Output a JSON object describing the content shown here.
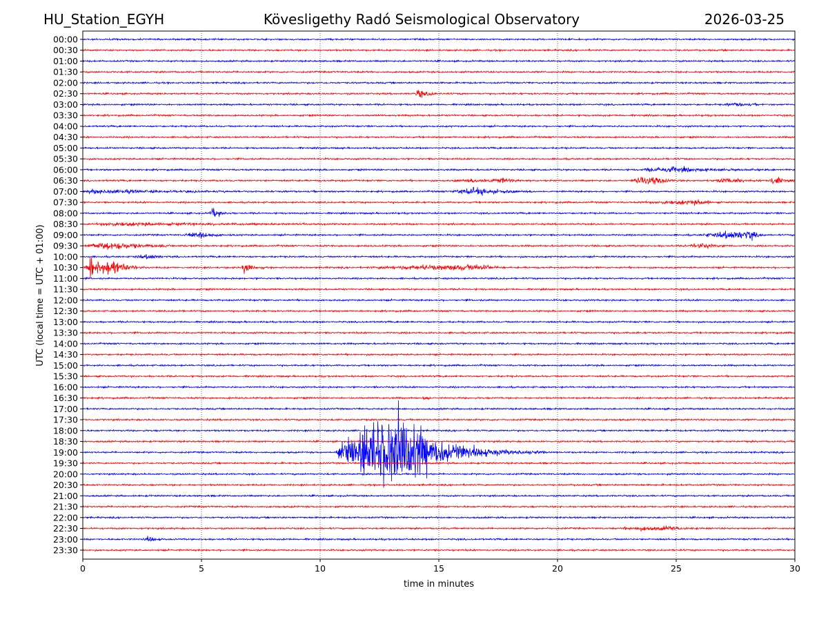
{
  "chart_data": {
    "type": "line",
    "subtype": "helicorder",
    "title_left": "HU_Station_EGYH",
    "title_center": "Kövesligethy Radó Seismological Observatory",
    "title_right": "2026-03-25",
    "xlabel": "time in minutes",
    "ylabel": "UTC (local time = UTC + 01:00)",
    "xlim": [
      0,
      30
    ],
    "xticks": [
      "0",
      "5",
      "10",
      "15",
      "20",
      "25",
      "30"
    ],
    "grid": "vertical dotted at x ticks",
    "colors": [
      "#0000ff",
      "#ff0000"
    ],
    "rows": [
      "00:00",
      "00:30",
      "01:00",
      "01:30",
      "02:00",
      "02:30",
      "03:00",
      "03:30",
      "04:00",
      "04:30",
      "05:00",
      "05:30",
      "06:00",
      "06:30",
      "07:00",
      "07:30",
      "08:00",
      "08:30",
      "09:00",
      "09:30",
      "10:00",
      "10:30",
      "11:00",
      "11:30",
      "12:00",
      "12:30",
      "13:00",
      "13:30",
      "14:00",
      "14:30",
      "15:00",
      "15:30",
      "16:00",
      "16:30",
      "17:00",
      "17:30",
      "18:00",
      "18:30",
      "19:00",
      "19:30",
      "20:00",
      "20:30",
      "21:00",
      "21:30",
      "22:00",
      "22:30",
      "23:00",
      "23:30"
    ],
    "events": [
      {
        "row": "02:30",
        "start": 14.0,
        "peak": 14.1,
        "end": 15.3,
        "amplitude": 8
      },
      {
        "row": "03:00",
        "start": 27.0,
        "peak": 27.8,
        "end": 29.0,
        "amplitude": 2
      },
      {
        "row": "06:00",
        "start": 23.5,
        "peak": 24.8,
        "end": 30.0,
        "amplitude": 4
      },
      {
        "row": "06:30",
        "start": 15.5,
        "peak": 17.8,
        "end": 19.5,
        "amplitude": 3
      },
      {
        "row": "06:30",
        "start": 23.0,
        "peak": 24.2,
        "end": 25.5,
        "amplitude": 6
      },
      {
        "row": "06:30",
        "start": 26.5,
        "peak": 27.5,
        "end": 28.5,
        "amplitude": 4
      },
      {
        "row": "06:30",
        "start": 28.8,
        "peak": 29.3,
        "end": 30.0,
        "amplitude": 6
      },
      {
        "row": "07:00",
        "start": 0.0,
        "peak": 0.5,
        "end": 10.0,
        "amplitude": 3
      },
      {
        "row": "07:00",
        "start": 15.5,
        "peak": 16.8,
        "end": 20.0,
        "amplitude": 5
      },
      {
        "row": "07:30",
        "start": 23.5,
        "peak": 26.3,
        "end": 27.0,
        "amplitude": 3
      },
      {
        "row": "08:00",
        "start": 5.3,
        "peak": 5.5,
        "end": 6.5,
        "amplitude": 8
      },
      {
        "row": "08:30",
        "start": 0.5,
        "peak": 1.5,
        "end": 14.5,
        "amplitude": 2.5
      },
      {
        "row": "09:00",
        "start": 4.2,
        "peak": 5.2,
        "end": 6.5,
        "amplitude": 5
      },
      {
        "row": "09:00",
        "start": 26.0,
        "peak": 28.2,
        "end": 29.0,
        "amplitude": 7
      },
      {
        "row": "09:30",
        "start": 0.0,
        "peak": 1.5,
        "end": 5.0,
        "amplitude": 6
      },
      {
        "row": "09:30",
        "start": 25.5,
        "peak": 26.3,
        "end": 27.5,
        "amplitude": 4
      },
      {
        "row": "10:00",
        "start": 2.0,
        "peak": 3.0,
        "end": 4.0,
        "amplitude": 3
      },
      {
        "row": "10:30",
        "start": 0.3,
        "peak": 0.33,
        "end": 0.45,
        "amplitude": 60
      },
      {
        "row": "10:30",
        "start": 0.0,
        "peak": 1.3,
        "end": 3.0,
        "amplitude": 14
      },
      {
        "row": "10:30",
        "start": 6.7,
        "peak": 6.8,
        "end": 7.8,
        "amplitude": 10
      },
      {
        "row": "10:30",
        "start": 12.0,
        "peak": 17.0,
        "end": 18.0,
        "amplitude": 4
      },
      {
        "row": "16:30",
        "start": 14.3,
        "peak": 14.5,
        "end": 14.8,
        "amplitude": 4
      },
      {
        "row": "19:00",
        "start": 10.6,
        "peak": 13.6,
        "end": 19.5,
        "amplitude": 62
      },
      {
        "row": "22:30",
        "start": 22.5,
        "peak": 24.8,
        "end": 26.5,
        "amplitude": 3
      },
      {
        "row": "23:00",
        "start": 2.5,
        "peak": 2.9,
        "end": 3.5,
        "amplitude": 4
      }
    ]
  }
}
